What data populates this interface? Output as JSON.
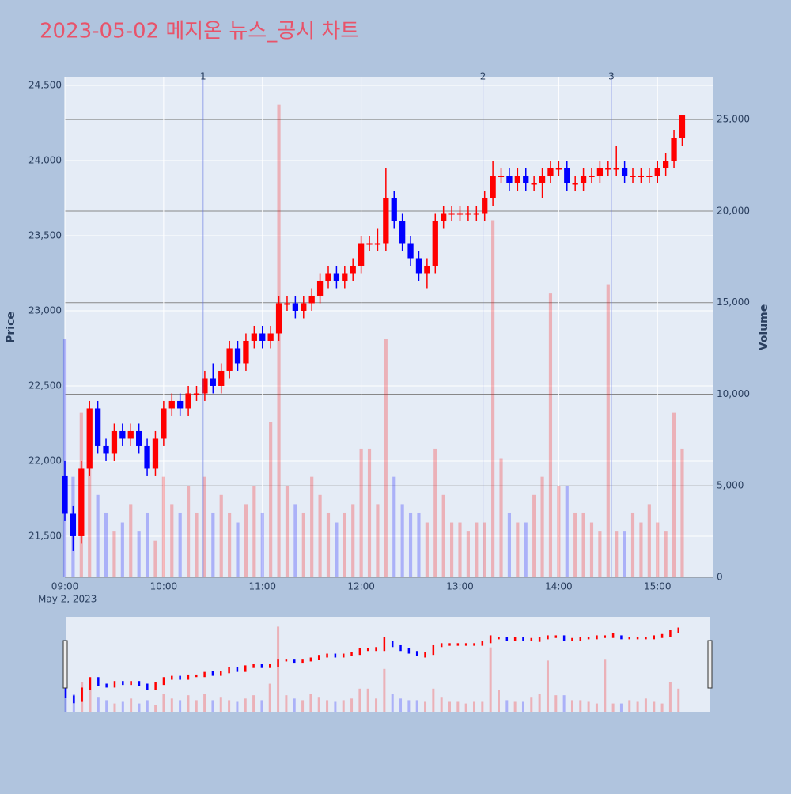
{
  "chart_data": {
    "type": "candlestick",
    "title": "2023-05-02 메지온 뉴스_공시 차트",
    "x": [
      "09:00",
      "09:05",
      "09:10",
      "09:15",
      "09:20",
      "09:25",
      "09:30",
      "09:35",
      "09:40",
      "09:45",
      "09:50",
      "09:55",
      "10:00",
      "10:05",
      "10:10",
      "10:15",
      "10:20",
      "10:25",
      "10:30",
      "10:35",
      "10:40",
      "10:45",
      "10:50",
      "10:55",
      "11:00",
      "11:05",
      "11:10",
      "11:15",
      "11:20",
      "11:25",
      "11:30",
      "11:35",
      "11:40",
      "11:45",
      "11:50",
      "11:55",
      "12:00",
      "12:05",
      "12:10",
      "12:15",
      "12:20",
      "12:25",
      "12:30",
      "12:35",
      "12:40",
      "12:45",
      "12:50",
      "12:55",
      "13:00",
      "13:05",
      "13:10",
      "13:15",
      "13:20",
      "13:25",
      "13:30",
      "13:35",
      "13:40",
      "13:45",
      "13:50",
      "13:55",
      "14:00",
      "14:05",
      "14:10",
      "14:15",
      "14:20",
      "14:25",
      "14:30",
      "14:35",
      "14:40",
      "14:45",
      "14:50",
      "14:55",
      "15:00",
      "15:05",
      "15:10",
      "15:15"
    ],
    "open": [
      21900,
      21650,
      21500,
      21950,
      22350,
      22100,
      22050,
      22200,
      22150,
      22200,
      22100,
      21950,
      22150,
      22350,
      22400,
      22350,
      22450,
      22450,
      22550,
      22500,
      22600,
      22750,
      22650,
      22800,
      22850,
      22800,
      22850,
      23050,
      23050,
      23000,
      23050,
      23100,
      23200,
      23250,
      23200,
      23250,
      23300,
      23450,
      23450,
      23450,
      23750,
      23600,
      23450,
      23350,
      23250,
      23300,
      23600,
      23650,
      23650,
      23650,
      23650,
      23650,
      23750,
      23900,
      23900,
      23850,
      23900,
      23850,
      23850,
      23900,
      23950,
      23950,
      23850,
      23850,
      23900,
      23900,
      23950,
      23950,
      23950,
      23900,
      23900,
      23900,
      23900,
      23950,
      24000,
      24150
    ],
    "high": [
      22000,
      21700,
      22000,
      22400,
      22400,
      22150,
      22250,
      22250,
      22250,
      22250,
      22150,
      22200,
      22400,
      22450,
      22450,
      22500,
      22500,
      22600,
      22650,
      22650,
      22800,
      22800,
      22850,
      22900,
      22900,
      22900,
      23100,
      23100,
      23100,
      23100,
      23150,
      23250,
      23300,
      23300,
      23300,
      23350,
      23500,
      23500,
      23550,
      23950,
      23800,
      23650,
      23500,
      23400,
      23350,
      23650,
      23700,
      23700,
      23700,
      23700,
      23700,
      23800,
      24000,
      23950,
      23950,
      23950,
      23950,
      23900,
      23950,
      24000,
      24000,
      24000,
      23900,
      23950,
      23950,
      24000,
      24000,
      24100,
      24000,
      23950,
      23950,
      23950,
      24000,
      24050,
      24200,
      24300
    ],
    "low": [
      21600,
      21400,
      21450,
      21900,
      22050,
      22000,
      22000,
      22100,
      22100,
      22050,
      21900,
      21900,
      22100,
      22300,
      22300,
      22300,
      22400,
      22400,
      22450,
      22450,
      22550,
      22600,
      22600,
      22750,
      22750,
      22750,
      22800,
      23000,
      22950,
      22950,
      23000,
      23050,
      23150,
      23150,
      23150,
      23200,
      23250,
      23400,
      23400,
      23400,
      23550,
      23400,
      23300,
      23200,
      23150,
      23250,
      23550,
      23600,
      23600,
      23600,
      23600,
      23600,
      23700,
      23850,
      23800,
      23800,
      23800,
      23800,
      23750,
      23850,
      23900,
      23800,
      23800,
      23800,
      23850,
      23850,
      23900,
      23900,
      23850,
      23850,
      23850,
      23850,
      23850,
      23900,
      23950,
      24100
    ],
    "close": [
      21650,
      21500,
      21950,
      22350,
      22100,
      22050,
      22200,
      22150,
      22200,
      22100,
      21950,
      22150,
      22350,
      22400,
      22350,
      22450,
      22450,
      22550,
      22500,
      22600,
      22750,
      22650,
      22800,
      22850,
      22800,
      22850,
      23050,
      23050,
      23000,
      23050,
      23100,
      23200,
      23250,
      23200,
      23250,
      23300,
      23450,
      23450,
      23450,
      23750,
      23600,
      23450,
      23350,
      23250,
      23300,
      23600,
      23650,
      23650,
      23650,
      23650,
      23650,
      23750,
      23900,
      23900,
      23850,
      23900,
      23850,
      23850,
      23900,
      23950,
      23950,
      23850,
      23850,
      23900,
      23900,
      23950,
      23950,
      23950,
      23900,
      23900,
      23900,
      23900,
      23950,
      24000,
      24150,
      24300
    ],
    "volume": [
      13000,
      5500,
      9000,
      6500,
      4500,
      3500,
      2500,
      3000,
      4000,
      2500,
      3500,
      2000,
      5500,
      4000,
      3500,
      5000,
      3500,
      5500,
      3500,
      4500,
      3500,
      3000,
      4000,
      5000,
      3500,
      8500,
      25800,
      5000,
      4000,
      3500,
      5500,
      4500,
      3500,
      3000,
      3500,
      4000,
      7000,
      7000,
      4000,
      13000,
      5500,
      4000,
      3500,
      3500,
      3000,
      7000,
      4500,
      3000,
      3000,
      2500,
      3000,
      3000,
      19500,
      6500,
      3500,
      3000,
      3000,
      4500,
      5500,
      15500,
      5000,
      5000,
      3500,
      3500,
      3000,
      2500,
      16000,
      2500,
      2500,
      3500,
      3000,
      4000,
      3000,
      2500,
      9000,
      7000
    ],
    "up_color": "#ff0000",
    "down_color": "#0000ff",
    "xlim": [
      "09:00",
      "15:34"
    ],
    "xticks": [
      "09:00",
      "10:00",
      "11:00",
      "12:00",
      "13:00",
      "14:00",
      "15:00"
    ],
    "x_date_label": "May 2, 2023",
    "ylabel": "Price",
    "ylim": [
      21226,
      24558
    ],
    "yticks": [
      {
        "value": 21500,
        "label": "21,500"
      },
      {
        "value": 22000,
        "label": "22,000"
      },
      {
        "value": 22500,
        "label": "22,500"
      },
      {
        "value": 23000,
        "label": "23,000"
      },
      {
        "value": 23500,
        "label": "23,500"
      },
      {
        "value": 24000,
        "label": "24,000"
      },
      {
        "value": 24500,
        "label": "24,500"
      }
    ],
    "y2label": "Volume",
    "y2lim": [
      0,
      27340
    ],
    "y2ticks": [
      0,
      {
        "value": 5000,
        "label": "5,000"
      },
      {
        "value": 10000,
        "label": "10,000"
      },
      {
        "value": 15000,
        "label": "15,000"
      },
      {
        "value": 20000,
        "label": "20,000"
      },
      {
        "value": 25000,
        "label": "25,000"
      }
    ],
    "markers": [
      {
        "label": "1",
        "x": "10:24"
      },
      {
        "label": "2",
        "x": "13:14"
      },
      {
        "label": "3",
        "x": "14:32"
      }
    ],
    "rangeslider": true
  }
}
